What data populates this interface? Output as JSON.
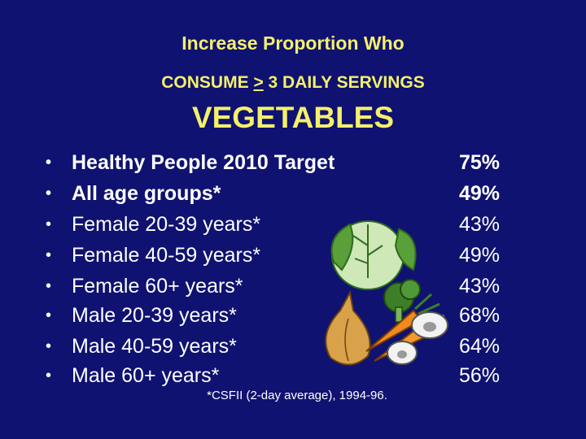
{
  "slide": {
    "title_line1": "Increase Proportion Who",
    "title_line2_prefix": "CONSUME ",
    "title_line2_underlined": ">",
    "title_line2_suffix": " 3 DAILY SERVINGS",
    "title_line3": "VEGETABLES",
    "bullet_char": "•",
    "rows": [
      {
        "label": "Healthy People 2010 Target",
        "value": "75%"
      },
      {
        "label": "All age groups*",
        "value": "49%"
      },
      {
        "label": "Female 20-39 years*",
        "value": "43%"
      },
      {
        "label": "Female 40-59 years*",
        "value": "49%"
      },
      {
        "label": "Female 60+ years*",
        "value": "43%"
      },
      {
        "label": "Male 20-39 years*",
        "value": "68%"
      },
      {
        "label": "Male 40-59 years*",
        "value": "64%"
      },
      {
        "label": "Male 60+ years*",
        "value": "56%"
      }
    ],
    "footnote": "*CSFII (2-day average), 1994-96."
  },
  "colors": {
    "background": "#0f1270",
    "title": "#f5f06a",
    "text": "#ffffff"
  },
  "illustration": {
    "icon": "vegetables-illustration-icon"
  }
}
